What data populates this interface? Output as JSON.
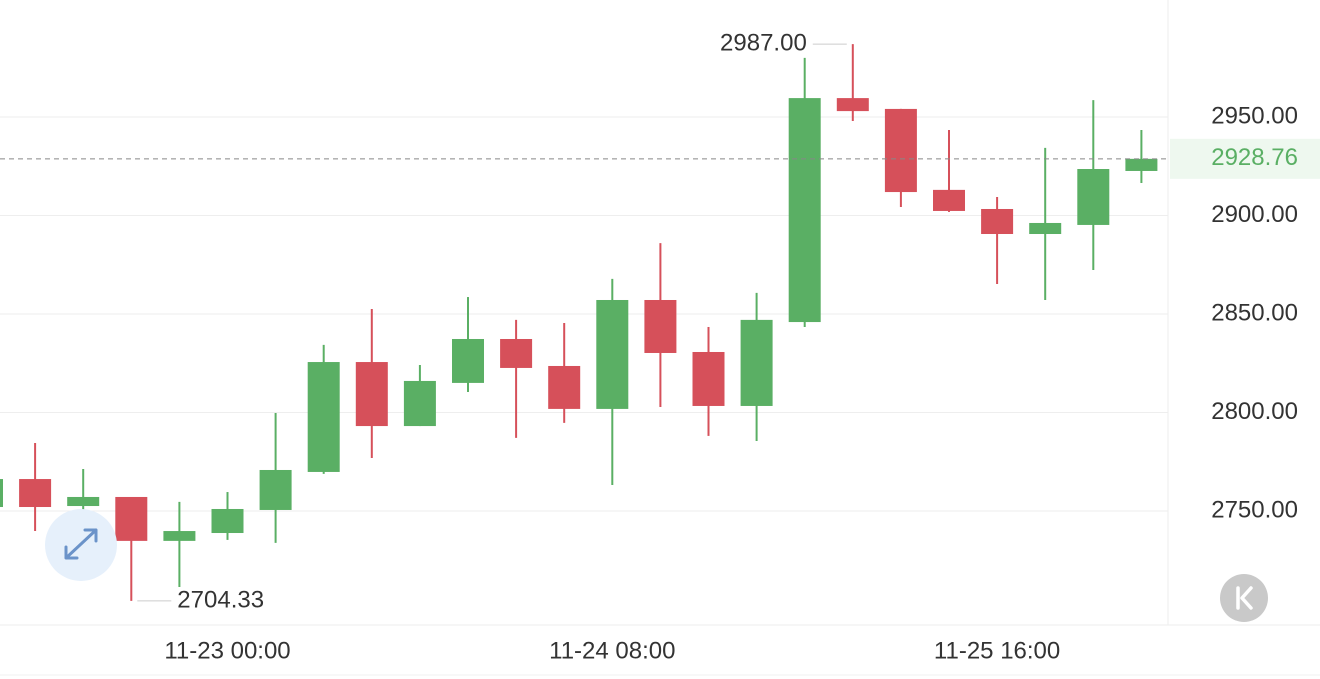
{
  "chart_data": {
    "type": "candlestick",
    "categories": [
      null,
      null,
      null,
      null,
      null,
      "11-23 00:00",
      null,
      null,
      null,
      null,
      null,
      null,
      null,
      "11-24 08:00",
      null,
      null,
      null,
      null,
      null,
      null,
      null,
      "11-25 16:00",
      null,
      null,
      null
    ],
    "open": [
      2752,
      2766.2,
      2752.5,
      2757.1,
      2734.8,
      2738.8,
      2750.5,
      2769.8,
      2825.6,
      2793.1,
      2815,
      2837.3,
      2823.6,
      2801.8,
      2857.1,
      2830.7,
      2803.3,
      2845.9,
      2959.6,
      2954.1,
      2913,
      2903.3,
      2890.6,
      2895.2,
      2922.6
    ],
    "high": [
      2768.3,
      2784.5,
      2771.3,
      2757.1,
      2754.6,
      2759.6,
      2799.7,
      2834.3,
      2852.5,
      2824.1,
      2858.6,
      2847,
      2845.4,
      2867.8,
      2886,
      2843.4,
      2860.7,
      2980,
      2987,
      2954.1,
      2943.4,
      2909.4,
      2934.3,
      2958.6,
      2943.4
    ],
    "low": [
      2750.5,
      2739.8,
      2727.2,
      2704.33,
      2711.4,
      2735.3,
      2733.8,
      2768.8,
      2776.9,
      2793.1,
      2810.4,
      2787.1,
      2794.7,
      2763.2,
      2802.8,
      2788.1,
      2785.5,
      2843.4,
      2948,
      2904.3,
      2901.8,
      2865.2,
      2857.1,
      2872.3,
      2916.5
    ],
    "close": [
      2766.2,
      2752,
      2757.1,
      2734.8,
      2739.8,
      2751,
      2770.8,
      2825.6,
      2793.1,
      2816,
      2837.3,
      2822.6,
      2801.8,
      2857.1,
      2830.2,
      2803.3,
      2847,
      2959.6,
      2953,
      2911.9,
      2902.3,
      2890.6,
      2896.2,
      2923.6,
      2928.76
    ],
    "high_value_labels": [
      null,
      null,
      null,
      null,
      null,
      null,
      null,
      null,
      null,
      null,
      null,
      null,
      null,
      null,
      null,
      null,
      null,
      null,
      "2987.00",
      null,
      null,
      null,
      null,
      null,
      null
    ],
    "low_value_labels": [
      null,
      null,
      null,
      "2704.33",
      null,
      null,
      null,
      null,
      null,
      null,
      null,
      null,
      null,
      null,
      null,
      null,
      null,
      null,
      null,
      null,
      null,
      null,
      null,
      null,
      null
    ],
    "up_color": "#5aaf64",
    "down_color": "#d6505a",
    "ylim": [
      2692.1,
      3009.4
    ],
    "yticks": [
      {
        "value": 2750,
        "label": "2750.00"
      },
      {
        "value": 2800,
        "label": "2800.00"
      },
      {
        "value": 2850,
        "label": "2850.00"
      },
      {
        "value": 2900,
        "label": "2900.00"
      },
      {
        "value": 2950,
        "label": "2950.00"
      }
    ],
    "grid": true
  }
}
